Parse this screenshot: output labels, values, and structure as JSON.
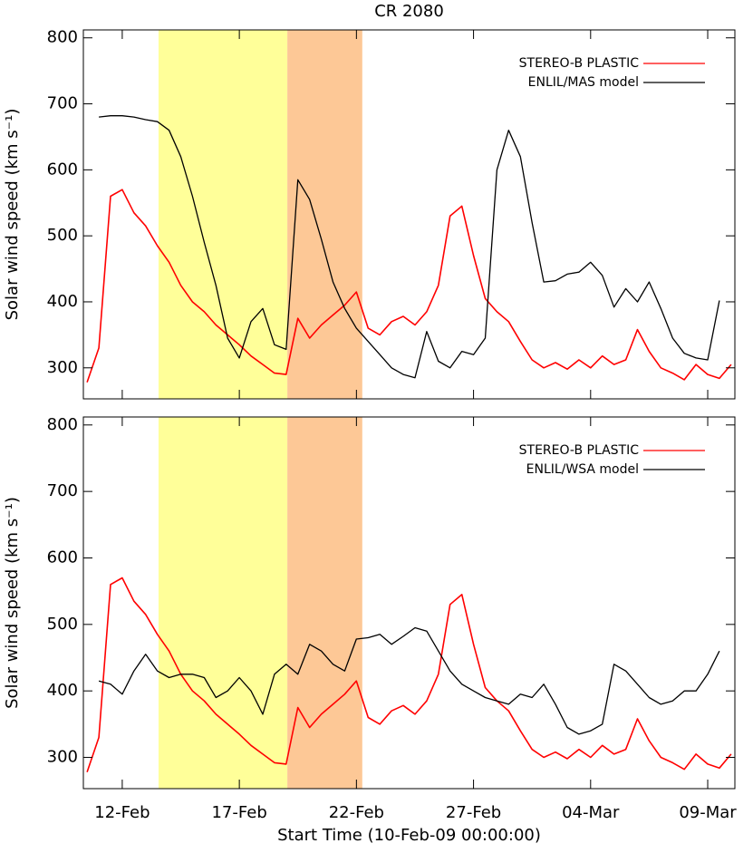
{
  "chart_data": [
    {
      "type": "line",
      "title": "CR 2080",
      "ylabel": "Solar wind speed (km s⁻¹)",
      "xlim": [
        0.34,
        28.16
      ],
      "xticks": [
        2,
        7,
        12,
        17,
        22,
        27
      ],
      "ylim": [
        253,
        812
      ],
      "yticks": [
        300,
        400,
        500,
        600,
        700,
        800
      ],
      "shaded_regions": [
        {
          "x": [
            3.55,
            9.05
          ],
          "color": "#ffff99"
        },
        {
          "x": [
            9.05,
            12.25
          ],
          "color": "#fdc896"
        }
      ],
      "x": [
        0.5,
        1.0,
        1.5,
        2.0,
        2.5,
        3.0,
        3.5,
        4.0,
        4.5,
        5.0,
        5.5,
        6.0,
        6.5,
        7.0,
        7.5,
        8.0,
        8.5,
        9.0,
        9.5,
        10.0,
        10.5,
        11.0,
        11.5,
        12.0,
        12.5,
        13.0,
        13.5,
        14.0,
        14.5,
        15.0,
        15.5,
        16.0,
        16.5,
        17.0,
        17.5,
        18.0,
        18.5,
        19.0,
        19.5,
        20.0,
        20.5,
        21.0,
        21.5,
        22.0,
        22.5,
        23.0,
        23.5,
        24.0,
        24.5,
        25.0,
        25.5,
        26.0,
        26.5,
        27.0,
        27.5,
        28.0
      ],
      "series": [
        {
          "name": "STEREO-B PLASTIC",
          "color": "#ff0000",
          "values": [
            278,
            330,
            560,
            570,
            535,
            515,
            485,
            460,
            425,
            400,
            385,
            365,
            350,
            335,
            318,
            305,
            292,
            290,
            375,
            345,
            365,
            380,
            395,
            415,
            360,
            350,
            370,
            378,
            365,
            385,
            425,
            530,
            545,
            470,
            405,
            385,
            370,
            340,
            312,
            300,
            308,
            298,
            312,
            300,
            318,
            305,
            312,
            358,
            325,
            300,
            292,
            282,
            305,
            290,
            284,
            305
          ]
        },
        {
          "name": "ENLIL/MAS model",
          "color": "#000000",
          "values": [
            null,
            680,
            682,
            682,
            680,
            676,
            673,
            660,
            620,
            560,
            490,
            425,
            345,
            315,
            370,
            390,
            335,
            328,
            585,
            555,
            495,
            430,
            390,
            360,
            340,
            320,
            300,
            290,
            285,
            355,
            310,
            300,
            325,
            320,
            345,
            600,
            660,
            620,
            520,
            430,
            432,
            442,
            445,
            460,
            440,
            392,
            420,
            400,
            430,
            390,
            345,
            322,
            315,
            312,
            402,
            null
          ]
        }
      ]
    },
    {
      "type": "line",
      "ylabel": "Solar wind speed (km s⁻¹)",
      "xlabel": "Start Time (10-Feb-09 00:00:00)",
      "xlim": [
        0.34,
        28.16
      ],
      "xticks": [
        {
          "value": 2,
          "label": "12-Feb"
        },
        {
          "value": 7,
          "label": "17-Feb"
        },
        {
          "value": 12,
          "label": "22-Feb"
        },
        {
          "value": 17,
          "label": "27-Feb"
        },
        {
          "value": 22,
          "label": "04-Mar"
        },
        {
          "value": 27,
          "label": "09-Mar"
        }
      ],
      "ylim": [
        253,
        812
      ],
      "yticks": [
        300,
        400,
        500,
        600,
        700,
        800
      ],
      "shaded_regions": [
        {
          "x": [
            3.55,
            9.05
          ],
          "color": "#ffff99"
        },
        {
          "x": [
            9.05,
            12.25
          ],
          "color": "#fdc896"
        }
      ],
      "x": [
        0.5,
        1.0,
        1.5,
        2.0,
        2.5,
        3.0,
        3.5,
        4.0,
        4.5,
        5.0,
        5.5,
        6.0,
        6.5,
        7.0,
        7.5,
        8.0,
        8.5,
        9.0,
        9.5,
        10.0,
        10.5,
        11.0,
        11.5,
        12.0,
        12.5,
        13.0,
        13.5,
        14.0,
        14.5,
        15.0,
        15.5,
        16.0,
        16.5,
        17.0,
        17.5,
        18.0,
        18.5,
        19.0,
        19.5,
        20.0,
        20.5,
        21.0,
        21.5,
        22.0,
        22.5,
        23.0,
        23.5,
        24.0,
        24.5,
        25.0,
        25.5,
        26.0,
        26.5,
        27.0,
        27.5,
        28.0
      ],
      "series": [
        {
          "name": "STEREO-B PLASTIC",
          "color": "#ff0000",
          "values": [
            278,
            330,
            560,
            570,
            535,
            515,
            485,
            460,
            425,
            400,
            385,
            365,
            350,
            335,
            318,
            305,
            292,
            290,
            375,
            345,
            365,
            380,
            395,
            415,
            360,
            350,
            370,
            378,
            365,
            385,
            425,
            530,
            545,
            470,
            405,
            385,
            370,
            340,
            312,
            300,
            308,
            298,
            312,
            300,
            318,
            305,
            312,
            358,
            325,
            300,
            292,
            282,
            305,
            290,
            284,
            305
          ]
        },
        {
          "name": "ENLIL/WSA model",
          "color": "#000000",
          "values": [
            null,
            415,
            410,
            395,
            430,
            455,
            430,
            420,
            425,
            425,
            420,
            390,
            400,
            420,
            400,
            365,
            425,
            440,
            425,
            470,
            460,
            440,
            430,
            478,
            480,
            485,
            470,
            482,
            495,
            490,
            460,
            430,
            410,
            400,
            390,
            385,
            380,
            395,
            390,
            410,
            380,
            345,
            335,
            340,
            350,
            440,
            430,
            410,
            390,
            380,
            385,
            400,
            400,
            425,
            460,
            null
          ]
        }
      ]
    }
  ]
}
